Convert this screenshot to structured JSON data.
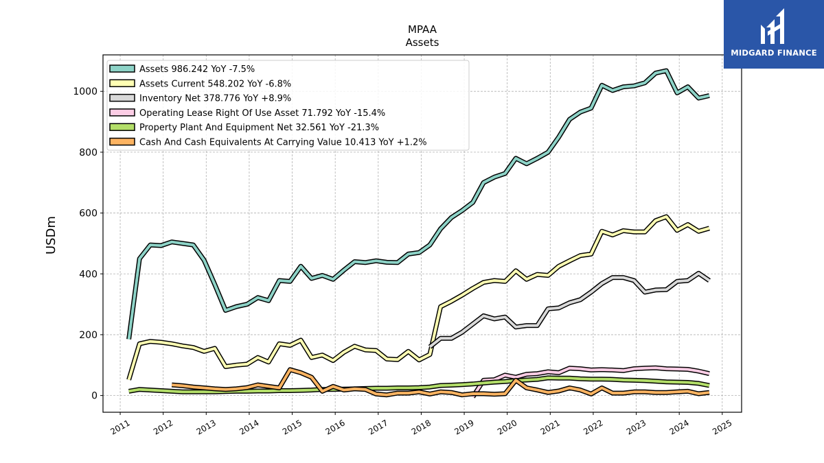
{
  "chart_data": {
    "type": "line",
    "title": "MPAA",
    "subtitle": "Assets",
    "ylabel": "USDm",
    "xlabel": "",
    "xlim": [
      2010.6,
      2025.45
    ],
    "ylim": [
      -55,
      1120
    ],
    "x_ticks": [
      2011,
      2012,
      2013,
      2014,
      2015,
      2016,
      2017,
      2018,
      2019,
      2020,
      2021,
      2022,
      2023,
      2024,
      2025
    ],
    "y_ticks": [
      0,
      200,
      400,
      600,
      800,
      1000
    ],
    "grid": true,
    "legend_position": "top-left",
    "series": [
      {
        "name": "Assets",
        "legend_label": "Assets  986.242 YoY -7.5%",
        "color": "#8dd3c7",
        "points": [
          [
            2011.2,
            185
          ],
          [
            2011.45,
            450
          ],
          [
            2011.7,
            495
          ],
          [
            2011.95,
            493
          ],
          [
            2012.2,
            505
          ],
          [
            2012.45,
            500
          ],
          [
            2012.7,
            495
          ],
          [
            2012.95,
            445
          ],
          [
            2013.2,
            365
          ],
          [
            2013.45,
            280
          ],
          [
            2013.7,
            292
          ],
          [
            2013.95,
            300
          ],
          [
            2014.2,
            322
          ],
          [
            2014.45,
            312
          ],
          [
            2014.7,
            378
          ],
          [
            2014.95,
            375
          ],
          [
            2015.2,
            425
          ],
          [
            2015.45,
            385
          ],
          [
            2015.7,
            395
          ],
          [
            2015.95,
            382
          ],
          [
            2016.2,
            412
          ],
          [
            2016.45,
            440
          ],
          [
            2016.7,
            437
          ],
          [
            2016.95,
            443
          ],
          [
            2017.2,
            438
          ],
          [
            2017.45,
            437
          ],
          [
            2017.7,
            465
          ],
          [
            2017.95,
            470
          ],
          [
            2018.2,
            495
          ],
          [
            2018.45,
            548
          ],
          [
            2018.7,
            585
          ],
          [
            2018.95,
            608
          ],
          [
            2019.2,
            635
          ],
          [
            2019.45,
            700
          ],
          [
            2019.7,
            718
          ],
          [
            2019.95,
            730
          ],
          [
            2020.2,
            780
          ],
          [
            2020.45,
            762
          ],
          [
            2020.7,
            780
          ],
          [
            2020.95,
            800
          ],
          [
            2021.2,
            850
          ],
          [
            2021.45,
            908
          ],
          [
            2021.7,
            932
          ],
          [
            2021.95,
            945
          ],
          [
            2022.2,
            1020
          ],
          [
            2022.45,
            1003
          ],
          [
            2022.7,
            1015
          ],
          [
            2022.95,
            1018
          ],
          [
            2023.2,
            1028
          ],
          [
            2023.45,
            1060
          ],
          [
            2023.7,
            1068
          ],
          [
            2023.95,
            995
          ],
          [
            2024.2,
            1015
          ],
          [
            2024.45,
            978
          ],
          [
            2024.7,
            986
          ]
        ]
      },
      {
        "name": "Assets Current",
        "legend_label": "Assets Current  548.202 YoY -6.8%",
        "color": "#ffffb3",
        "points": [
          [
            2011.2,
            52
          ],
          [
            2011.45,
            170
          ],
          [
            2011.7,
            178
          ],
          [
            2011.95,
            175
          ],
          [
            2012.2,
            170
          ],
          [
            2012.45,
            163
          ],
          [
            2012.7,
            158
          ],
          [
            2012.95,
            145
          ],
          [
            2013.2,
            155
          ],
          [
            2013.45,
            95
          ],
          [
            2013.7,
            100
          ],
          [
            2013.95,
            103
          ],
          [
            2014.2,
            125
          ],
          [
            2014.45,
            110
          ],
          [
            2014.7,
            170
          ],
          [
            2014.95,
            165
          ],
          [
            2015.2,
            182
          ],
          [
            2015.45,
            125
          ],
          [
            2015.7,
            133
          ],
          [
            2015.95,
            115
          ],
          [
            2016.2,
            142
          ],
          [
            2016.45,
            162
          ],
          [
            2016.7,
            150
          ],
          [
            2016.95,
            148
          ],
          [
            2017.2,
            120
          ],
          [
            2017.45,
            118
          ],
          [
            2017.7,
            145
          ],
          [
            2017.95,
            117
          ],
          [
            2018.2,
            135
          ],
          [
            2018.45,
            292
          ],
          [
            2018.7,
            310
          ],
          [
            2018.95,
            330
          ],
          [
            2019.2,
            352
          ],
          [
            2019.45,
            372
          ],
          [
            2019.7,
            378
          ],
          [
            2019.95,
            375
          ],
          [
            2020.2,
            410
          ],
          [
            2020.45,
            382
          ],
          [
            2020.7,
            398
          ],
          [
            2020.95,
            395
          ],
          [
            2021.2,
            425
          ],
          [
            2021.45,
            443
          ],
          [
            2021.7,
            460
          ],
          [
            2021.95,
            465
          ],
          [
            2022.2,
            540
          ],
          [
            2022.45,
            528
          ],
          [
            2022.7,
            542
          ],
          [
            2022.95,
            538
          ],
          [
            2023.2,
            538
          ],
          [
            2023.45,
            575
          ],
          [
            2023.7,
            588
          ],
          [
            2023.95,
            543
          ],
          [
            2024.2,
            562
          ],
          [
            2024.45,
            540
          ],
          [
            2024.7,
            550
          ]
        ]
      },
      {
        "name": "Inventory Net",
        "legend_label": "Inventory Net  378.776 YoY +8.9%",
        "color": "#d9d9d9",
        "points": [
          [
            2018.2,
            160
          ],
          [
            2018.45,
            188
          ],
          [
            2018.7,
            188
          ],
          [
            2018.95,
            208
          ],
          [
            2019.2,
            235
          ],
          [
            2019.45,
            262
          ],
          [
            2019.7,
            252
          ],
          [
            2019.95,
            258
          ],
          [
            2020.2,
            225
          ],
          [
            2020.45,
            230
          ],
          [
            2020.7,
            230
          ],
          [
            2020.95,
            285
          ],
          [
            2021.2,
            288
          ],
          [
            2021.45,
            305
          ],
          [
            2021.7,
            315
          ],
          [
            2021.95,
            340
          ],
          [
            2022.2,
            368
          ],
          [
            2022.45,
            388
          ],
          [
            2022.7,
            388
          ],
          [
            2022.95,
            378
          ],
          [
            2023.2,
            340
          ],
          [
            2023.45,
            347
          ],
          [
            2023.7,
            348
          ],
          [
            2023.95,
            375
          ],
          [
            2024.2,
            378
          ],
          [
            2024.45,
            402
          ],
          [
            2024.7,
            378
          ]
        ]
      },
      {
        "name": "Operating Lease Right Of Use Asset",
        "legend_label": "Operating Lease Right Of Use Asset  71.792 YoY -15.4%",
        "color": "#fccde5",
        "points": [
          [
            2019.2,
            -5
          ],
          [
            2019.45,
            50
          ],
          [
            2019.7,
            52
          ],
          [
            2019.95,
            67
          ],
          [
            2020.2,
            60
          ],
          [
            2020.45,
            70
          ],
          [
            2020.7,
            72
          ],
          [
            2020.95,
            78
          ],
          [
            2021.2,
            75
          ],
          [
            2021.45,
            90
          ],
          [
            2021.7,
            88
          ],
          [
            2021.95,
            84
          ],
          [
            2022.2,
            85
          ],
          [
            2022.45,
            84
          ],
          [
            2022.7,
            82
          ],
          [
            2022.95,
            88
          ],
          [
            2023.2,
            90
          ],
          [
            2023.45,
            91
          ],
          [
            2023.7,
            88
          ],
          [
            2023.95,
            87
          ],
          [
            2024.2,
            86
          ],
          [
            2024.45,
            80
          ],
          [
            2024.7,
            72
          ]
        ]
      },
      {
        "name": "Property Plant And Equipment Net",
        "legend_label": "Property Plant And Equipment Net  32.561 YoY -21.3%",
        "color": "#b3de69",
        "points": [
          [
            2011.2,
            14
          ],
          [
            2011.45,
            20
          ],
          [
            2011.7,
            18
          ],
          [
            2011.95,
            16
          ],
          [
            2012.2,
            14
          ],
          [
            2012.45,
            12
          ],
          [
            2012.7,
            12
          ],
          [
            2012.95,
            12
          ],
          [
            2013.2,
            12
          ],
          [
            2013.45,
            13
          ],
          [
            2013.7,
            14
          ],
          [
            2013.95,
            14
          ],
          [
            2014.2,
            15
          ],
          [
            2014.45,
            15
          ],
          [
            2014.7,
            16
          ],
          [
            2014.95,
            16
          ],
          [
            2015.2,
            17
          ],
          [
            2015.45,
            18
          ],
          [
            2015.7,
            20
          ],
          [
            2015.95,
            20
          ],
          [
            2016.2,
            21
          ],
          [
            2016.45,
            22
          ],
          [
            2016.7,
            23
          ],
          [
            2016.95,
            24
          ],
          [
            2017.2,
            24
          ],
          [
            2017.45,
            25
          ],
          [
            2017.7,
            25
          ],
          [
            2017.95,
            26
          ],
          [
            2018.2,
            28
          ],
          [
            2018.45,
            33
          ],
          [
            2018.7,
            34
          ],
          [
            2018.95,
            36
          ],
          [
            2019.2,
            38
          ],
          [
            2019.45,
            41
          ],
          [
            2019.7,
            44
          ],
          [
            2019.95,
            46
          ],
          [
            2020.2,
            49
          ],
          [
            2020.45,
            51
          ],
          [
            2020.7,
            53
          ],
          [
            2020.95,
            58
          ],
          [
            2021.2,
            57
          ],
          [
            2021.45,
            57
          ],
          [
            2021.7,
            55
          ],
          [
            2021.95,
            54
          ],
          [
            2022.2,
            54
          ],
          [
            2022.45,
            53
          ],
          [
            2022.7,
            51
          ],
          [
            2022.95,
            50
          ],
          [
            2023.2,
            49
          ],
          [
            2023.45,
            47
          ],
          [
            2023.7,
            45
          ],
          [
            2023.95,
            44
          ],
          [
            2024.2,
            43
          ],
          [
            2024.45,
            40
          ],
          [
            2024.7,
            33
          ]
        ]
      },
      {
        "name": "Cash And Cash Equivalents At Carrying Value",
        "legend_label": "Cash And Cash Equivalents At Carrying Value  10.413 YoY +1.2%",
        "color": "#fdb462",
        "points": [
          [
            2012.2,
            35
          ],
          [
            2012.45,
            32
          ],
          [
            2012.7,
            28
          ],
          [
            2012.95,
            25
          ],
          [
            2013.2,
            22
          ],
          [
            2013.45,
            20
          ],
          [
            2013.7,
            22
          ],
          [
            2013.95,
            26
          ],
          [
            2014.2,
            35
          ],
          [
            2014.45,
            30
          ],
          [
            2014.7,
            25
          ],
          [
            2014.95,
            85
          ],
          [
            2015.2,
            75
          ],
          [
            2015.45,
            60
          ],
          [
            2015.7,
            14
          ],
          [
            2015.95,
            30
          ],
          [
            2016.2,
            18
          ],
          [
            2016.45,
            22
          ],
          [
            2016.7,
            20
          ],
          [
            2016.95,
            5
          ],
          [
            2017.2,
            2
          ],
          [
            2017.45,
            8
          ],
          [
            2017.7,
            8
          ],
          [
            2017.95,
            12
          ],
          [
            2018.2,
            5
          ],
          [
            2018.45,
            12
          ],
          [
            2018.7,
            10
          ],
          [
            2018.95,
            2
          ],
          [
            2019.2,
            6
          ],
          [
            2019.45,
            6
          ],
          [
            2019.7,
            4
          ],
          [
            2019.95,
            6
          ],
          [
            2020.2,
            50
          ],
          [
            2020.45,
            25
          ],
          [
            2020.7,
            18
          ],
          [
            2020.95,
            10
          ],
          [
            2021.2,
            15
          ],
          [
            2021.45,
            25
          ],
          [
            2021.7,
            18
          ],
          [
            2021.95,
            5
          ],
          [
            2022.2,
            25
          ],
          [
            2022.45,
            8
          ],
          [
            2022.7,
            8
          ],
          [
            2022.95,
            12
          ],
          [
            2023.2,
            12
          ],
          [
            2023.45,
            10
          ],
          [
            2023.7,
            10
          ],
          [
            2023.95,
            12
          ],
          [
            2024.2,
            14
          ],
          [
            2024.45,
            6
          ],
          [
            2024.7,
            10
          ]
        ]
      }
    ]
  },
  "logo": {
    "text": "MIDGARD FINANCE",
    "icon": "midgard-logo-icon",
    "background": "#2a56a8"
  }
}
